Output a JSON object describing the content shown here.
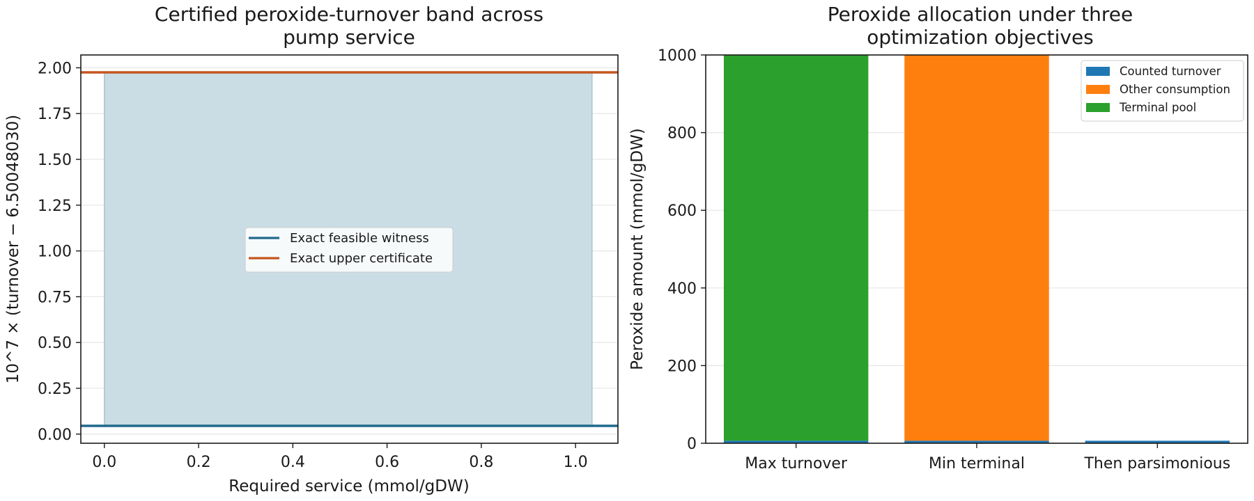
{
  "chart_data": [
    {
      "type": "area",
      "title": [
        "Certified peroxide-turnover band across",
        "pump service"
      ],
      "xlabel": "Required service (mmol/gDW)",
      "ylabel": "10^7 × (turnover − 6.50048030)",
      "xlim": [
        -0.05,
        1.09
      ],
      "ylim": [
        -0.05,
        2.07
      ],
      "xticks": [
        "0.0",
        "0.2",
        "0.4",
        "0.6",
        "0.8",
        "1.0"
      ],
      "yticks": [
        "0.00",
        "0.25",
        "0.50",
        "0.75",
        "1.00",
        "1.25",
        "1.50",
        "1.75",
        "2.00"
      ],
      "band": {
        "x": [
          0.0,
          1.035
        ],
        "lower": 0.045,
        "upper": 1.975,
        "color": "#c7dae3"
      },
      "series": [
        {
          "name": "Exact feasible witness",
          "x": [
            -0.05,
            1.09
          ],
          "y": [
            0.045,
            0.045
          ],
          "color": "#1f6a8c"
        },
        {
          "name": "Exact upper certificate",
          "x": [
            -0.05,
            1.09
          ],
          "y": [
            1.975,
            1.975
          ],
          "color": "#c4561f"
        }
      ],
      "grid": "y",
      "legend": "center"
    },
    {
      "type": "bar",
      "stacked": true,
      "title": [
        "Peroxide allocation under three",
        "optimization objectives"
      ],
      "xlabel": "",
      "ylabel": "Peroxide amount (mmol/gDW)",
      "ylim": [
        0,
        1000
      ],
      "yticks": [
        "0",
        "200",
        "400",
        "600",
        "800",
        "1000"
      ],
      "categories": [
        "Max turnover",
        "Min terminal",
        "Then parsimonious"
      ],
      "series": [
        {
          "name": "Counted turnover",
          "values": [
            6.5,
            6.5,
            6.5
          ],
          "color": "#1f77b4"
        },
        {
          "name": "Other consumption",
          "values": [
            0,
            993.5,
            0
          ],
          "color": "#ff7f0e"
        },
        {
          "name": "Terminal pool",
          "values": [
            993.5,
            0,
            0
          ],
          "color": "#2ca02c"
        }
      ],
      "grid": "y",
      "legend": "top-right"
    }
  ]
}
